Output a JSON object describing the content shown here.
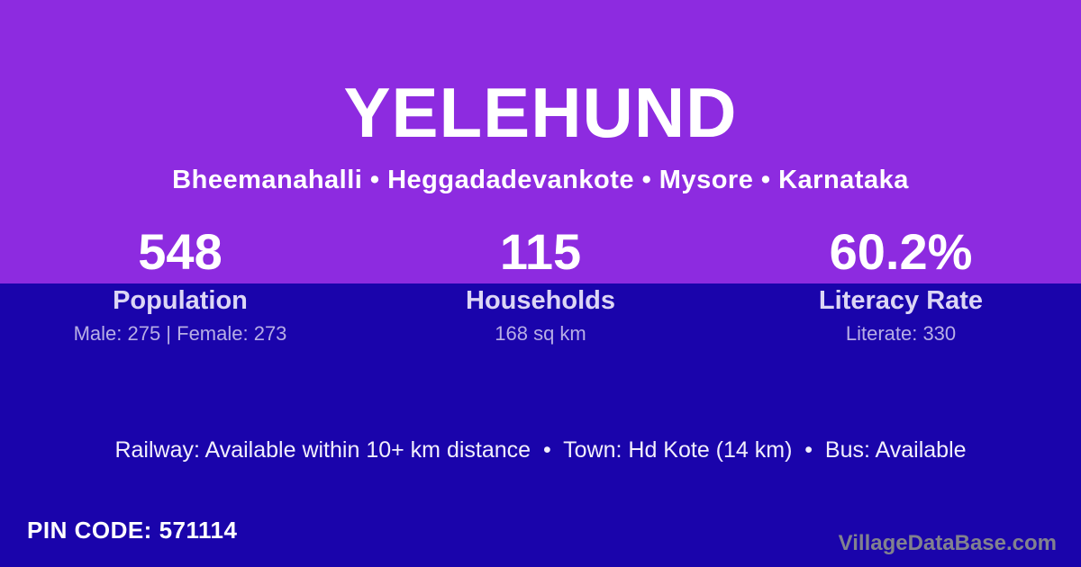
{
  "page": {
    "title": "YELEHUND",
    "subtitle": "Bheemanahalli • Heggadadevankote • Mysore • Karnataka"
  },
  "stats": [
    {
      "value": "548",
      "label": "Population",
      "detail": "Male: 275 | Female: 273"
    },
    {
      "value": "115",
      "label": "Households",
      "detail": "168 sq km"
    },
    {
      "value": "60.2%",
      "label": "Literacy Rate",
      "detail": "Literate: 330"
    }
  ],
  "transport_line": "Railway: Available within 10+ km distance  •  Town: Hd Kote (14 km)  •  Bus: Available",
  "footer": {
    "pin_code": "PIN CODE: 571114",
    "watermark": "VillageDataBase.com"
  },
  "colors": {
    "purple": "#8D2BE0",
    "blue": "#1A04AB",
    "label": "#DCD6F5",
    "detail": "#B7AEE5",
    "near_white": "#F2EFFC",
    "watermark": "#82828E"
  }
}
